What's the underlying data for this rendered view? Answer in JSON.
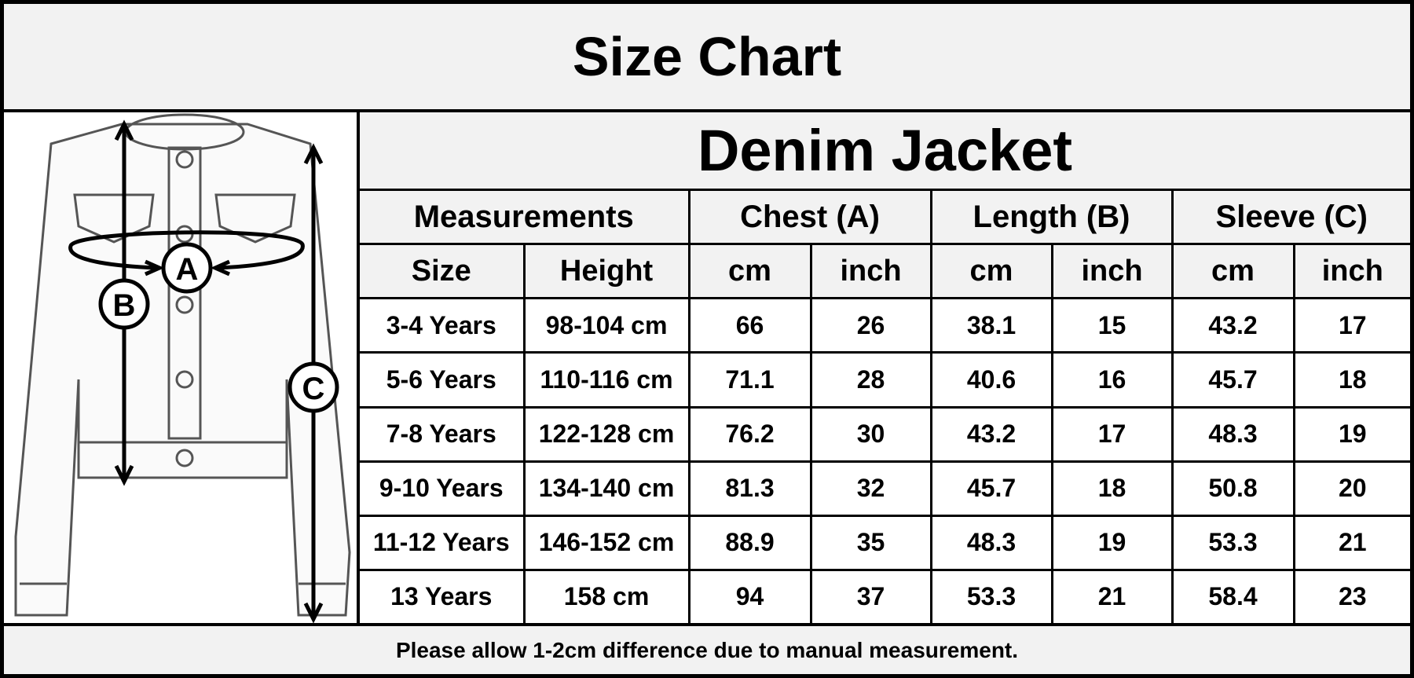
{
  "header": {
    "title": "Size Chart"
  },
  "diagram": {
    "labels": [
      "A",
      "B",
      "C"
    ]
  },
  "table": {
    "title": "Denim Jacket",
    "groups": [
      "Measurements",
      "Chest (A)",
      "Length (B)",
      "Sleeve (C)"
    ],
    "columns": [
      "Size",
      "Height",
      "cm",
      "inch",
      "cm",
      "inch",
      "cm",
      "inch"
    ],
    "rows": [
      [
        "3-4 Years",
        "98-104 cm",
        66,
        26,
        38.1,
        15,
        43.2,
        17
      ],
      [
        "5-6 Years",
        "110-116 cm",
        71.1,
        28,
        40.6,
        16,
        45.7,
        18
      ],
      [
        "7-8 Years",
        "122-128 cm",
        76.2,
        30,
        43.2,
        17,
        48.3,
        19
      ],
      [
        "9-10 Years",
        "134-140 cm",
        81.3,
        32,
        45.7,
        18,
        50.8,
        20
      ],
      [
        "11-12 Years",
        "146-152 cm",
        88.9,
        35,
        48.3,
        19,
        53.3,
        21
      ],
      [
        "13 Years",
        "158 cm",
        94,
        37,
        53.3,
        21,
        58.4,
        23
      ]
    ]
  },
  "footer": {
    "note": "Please allow 1-2cm difference due to manual measurement."
  }
}
